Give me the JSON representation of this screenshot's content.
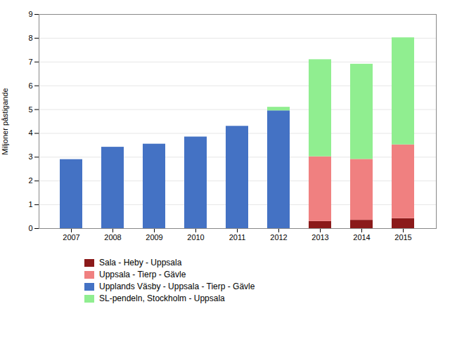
{
  "chart_data": {
    "type": "bar",
    "stacked": true,
    "categories": [
      "2007",
      "2008",
      "2009",
      "2010",
      "2011",
      "2012",
      "2013",
      "2014",
      "2015"
    ],
    "series": [
      {
        "name": "Sala - Heby - Uppsala",
        "color": "#8B1A1A",
        "values": [
          0,
          0,
          0,
          0,
          0,
          0,
          0.3,
          0.35,
          0.42
        ]
      },
      {
        "name": "Uppsala - Tierp - Gävle",
        "color": "#F08080",
        "values": [
          0,
          0,
          0,
          0,
          0,
          0,
          2.72,
          2.56,
          3.1
        ]
      },
      {
        "name": "Upplands Väsby - Uppsala - Tierp - Gävle",
        "color": "#4472C4",
        "values": [
          2.9,
          3.42,
          3.55,
          3.85,
          4.3,
          4.95,
          0,
          0,
          0
        ]
      },
      {
        "name": "SL-pendeln, Stockholm - Uppsala",
        "color": "#90EE90",
        "values": [
          0,
          0,
          0,
          0,
          0,
          0.15,
          4.08,
          4.0,
          4.5
        ]
      }
    ],
    "ylabel": "Miljoner påstigande",
    "ylim": [
      0,
      9
    ],
    "yticks": [
      0,
      1,
      2,
      3,
      4,
      5,
      6,
      7,
      8,
      9
    ],
    "grid": true,
    "legend": "bottom"
  }
}
